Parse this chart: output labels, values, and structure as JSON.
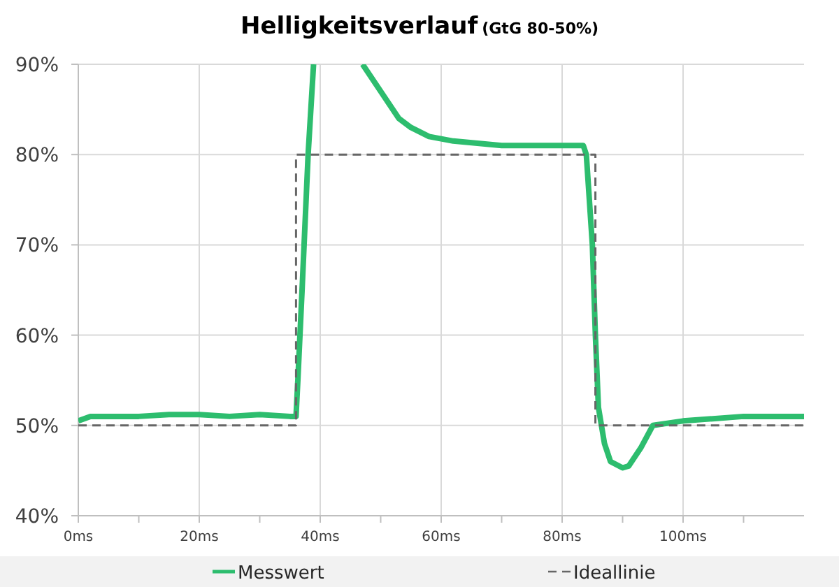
{
  "chart_data": {
    "type": "line",
    "title": "Helligkeitsverlauf",
    "subtitle": "(GtG 80-50%)",
    "xlim": [
      0,
      120
    ],
    "ylim": [
      40,
      90
    ],
    "xticks": [
      {
        "value": 0,
        "label": "0ms"
      },
      {
        "value": 10,
        "label": null
      },
      {
        "value": 20,
        "label": "20ms"
      },
      {
        "value": 30,
        "label": null
      },
      {
        "value": 40,
        "label": "40ms"
      },
      {
        "value": 50,
        "label": null
      },
      {
        "value": 60,
        "label": "60ms"
      },
      {
        "value": 70,
        "label": null
      },
      {
        "value": 80,
        "label": "80ms"
      },
      {
        "value": 90,
        "label": null
      },
      {
        "value": 100,
        "label": "100ms"
      },
      {
        "value": 110,
        "label": null
      }
    ],
    "yticks": [
      {
        "value": 40,
        "label": "40%"
      },
      {
        "value": 50,
        "label": "50%"
      },
      {
        "value": 60,
        "label": "60%"
      },
      {
        "value": 70,
        "label": "70%"
      },
      {
        "value": 80,
        "label": "80%"
      },
      {
        "value": 90,
        "label": "90%"
      }
    ],
    "grid": true,
    "legend": "bottom",
    "marker": "none",
    "series": [
      {
        "name": "Messwert",
        "color": "#2dbd6e",
        "line_style": "solid",
        "x": [
          0,
          2,
          5,
          10,
          15,
          20,
          25,
          30,
          35,
          36,
          36.3,
          37,
          38,
          38.9,
          43,
          47,
          50,
          53,
          55,
          58,
          62,
          70,
          80,
          83.5,
          84,
          85,
          85.5,
          86,
          87,
          88,
          90,
          91,
          93,
          95,
          100,
          110,
          120
        ],
        "values": [
          50.5,
          51,
          51,
          51,
          51.2,
          51.2,
          51,
          51.2,
          51,
          51,
          55,
          65,
          80,
          90,
          null,
          90,
          87,
          84,
          83,
          82,
          81.5,
          81,
          81,
          81,
          80,
          70,
          60,
          52,
          48,
          46,
          45.3,
          45.5,
          47.5,
          50,
          50.5,
          51,
          51
        ]
      },
      {
        "name": "Ideallinie",
        "color": "#666666",
        "line_style": "dashed",
        "x": [
          0,
          36,
          36,
          85.5,
          85.5,
          120
        ],
        "values": [
          50,
          50,
          80,
          80,
          50,
          50
        ]
      }
    ]
  }
}
